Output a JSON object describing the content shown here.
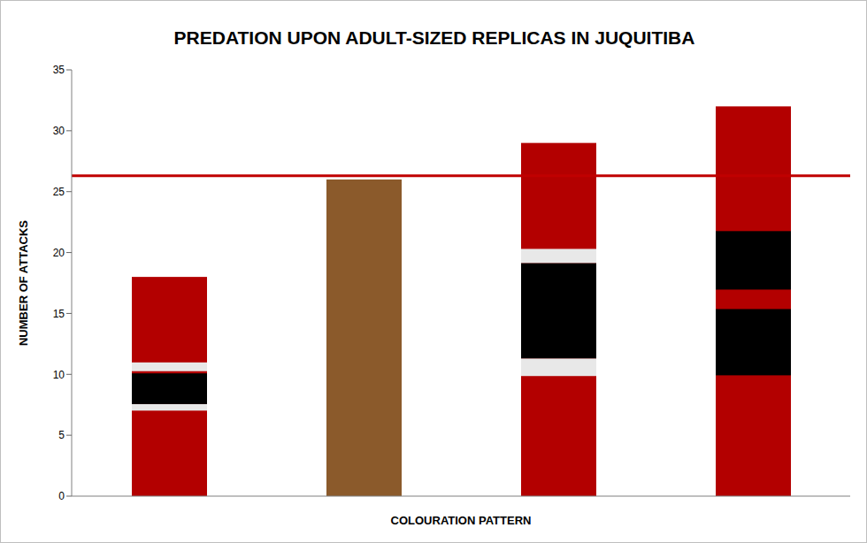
{
  "chart_data": {
    "type": "bar",
    "title": "PREDATION UPON ADULT-SIZED REPLICAS IN JUQUITIBA",
    "x_label": "COLOURATION PATTERN",
    "y_label": "NUMBER OF ATTACKS",
    "categories": [
      null,
      null,
      null,
      null
    ],
    "values": [
      18,
      26,
      29,
      32
    ],
    "colors": [
      "#b30000",
      "#8b5a2b",
      "#b30000",
      "#b30000"
    ],
    "ylim": [
      0,
      35
    ],
    "yticks": [
      0,
      5,
      10,
      15,
      20,
      25,
      30,
      35
    ],
    "grid": false,
    "reference_line": 26.3
  }
}
